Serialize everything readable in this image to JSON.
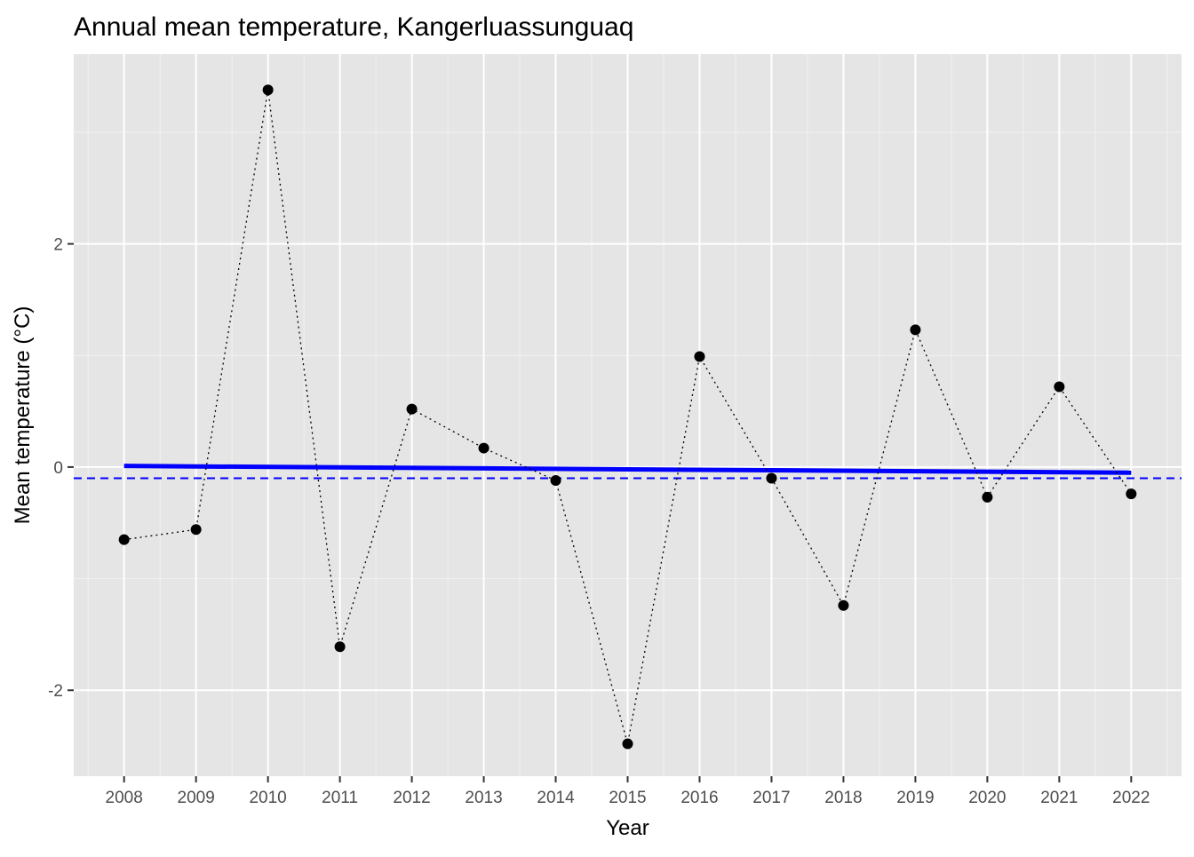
{
  "chart_data": {
    "type": "line",
    "title": "Annual mean temperature, Kangerluassunguaq",
    "xlabel": "Year",
    "ylabel": "Mean temperature (°C)",
    "x": [
      2008,
      2009,
      2010,
      2011,
      2012,
      2013,
      2014,
      2015,
      2016,
      2017,
      2018,
      2019,
      2020,
      2021,
      2022
    ],
    "x_tick_labels": [
      "2008",
      "2009",
      "2010",
      "2011",
      "2012",
      "2013",
      "2014",
      "2015",
      "2016",
      "2017",
      "2018",
      "2019",
      "2020",
      "2021",
      "2022"
    ],
    "y_ticks": [
      -2,
      0,
      2
    ],
    "y_tick_labels": [
      "-2",
      "0",
      "2"
    ],
    "xlim": [
      2007.3,
      2022.7
    ],
    "ylim": [
      -2.77,
      3.7
    ],
    "series": [
      {
        "values": [
          -0.65,
          -0.56,
          3.38,
          -1.61,
          0.52,
          0.17,
          -0.12,
          -2.48,
          0.99,
          -0.1,
          -1.24,
          1.23,
          -0.27,
          0.72,
          -0.24
        ],
        "line_style": "dotted",
        "color": "#000000",
        "markers": true
      }
    ],
    "trend_line": {
      "x": [
        2008,
        2022
      ],
      "y": [
        0.01,
        -0.05
      ],
      "color": "#0000ff",
      "style": "solid"
    },
    "mean_line": {
      "y": -0.1,
      "color": "#0000ff",
      "style": "dashed"
    },
    "panel_background": "#e5e5e5",
    "grid": true
  }
}
